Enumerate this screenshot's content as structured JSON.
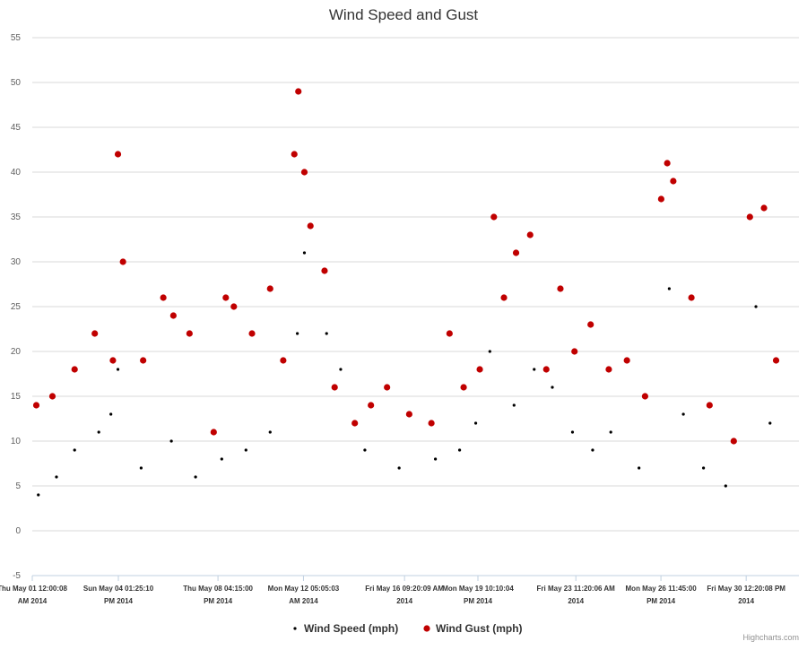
{
  "chart_data": {
    "type": "scatter",
    "title": "Wind Speed and Gust",
    "xlabel": "",
    "ylabel": "",
    "ylim": [
      -5,
      55
    ],
    "y_ticks": [
      -5,
      0,
      5,
      10,
      15,
      20,
      25,
      30,
      35,
      40,
      45,
      50,
      55
    ],
    "xlim": [
      "2014-05-01 00:00",
      "2014-06-01 16:40"
    ],
    "x_ticks": [
      {
        "at": "2014-05-01 00:00",
        "line1": "Thu May 01 12:00:08",
        "line2": "AM 2014"
      },
      {
        "at": "2014-05-04 13:25",
        "line1": "Sun May 04 01:25:10",
        "line2": "PM 2014"
      },
      {
        "at": "2014-05-08 16:15",
        "line1": "Thu May 08 04:15:00",
        "line2": "PM 2014"
      },
      {
        "at": "2014-05-12 05:05",
        "line1": "Mon May 12 05:05:03",
        "line2": "AM 2014"
      },
      {
        "at": "2014-05-16 09:20",
        "line1": "Fri May 16 09:20:09 AM",
        "line2": "2014"
      },
      {
        "at": "2014-05-19 10:10",
        "line1": "Mon May 19 10:10:04",
        "line2": "PM 2014"
      },
      {
        "at": "2014-05-23 11:20",
        "line1": "Fri May 23 11:20:06 AM",
        "line2": "2014"
      },
      {
        "at": "2014-05-26 23:45",
        "line1": "Mon May 26 11:45:00",
        "line2": "PM 2014"
      },
      {
        "at": "2014-05-30 12:20",
        "line1": "Fri May 30 12:20:08 PM",
        "line2": "2014"
      }
    ],
    "grid": true,
    "legend_position": "bottom-center",
    "series": [
      {
        "name": "Wind Speed (mph)",
        "color": "#000000",
        "marker": "small-dot",
        "x": [
          "2014-05-01 06:00",
          "2014-05-02 00:00",
          "2014-05-02 18:00",
          "2014-05-03 18:00",
          "2014-05-04 06:00",
          "2014-05-04 13:00",
          "2014-05-05 12:00",
          "2014-05-06 18:00",
          "2014-05-07 18:00",
          "2014-05-08 20:00",
          "2014-05-09 20:00",
          "2014-05-10 20:00",
          "2014-05-11 23:00",
          "2014-05-12 06:00",
          "2014-05-13 04:00",
          "2014-05-13 18:00",
          "2014-05-14 18:00",
          "2014-05-16 04:00",
          "2014-05-17 16:00",
          "2014-05-18 16:00",
          "2014-05-19 08:00",
          "2014-05-19 22:00",
          "2014-05-20 22:00",
          "2014-05-21 18:00",
          "2014-05-22 12:00",
          "2014-05-23 08:00",
          "2014-05-24 04:00",
          "2014-05-24 22:00",
          "2014-05-26 02:00",
          "2014-05-27 08:00",
          "2014-05-27 22:00",
          "2014-05-28 18:00",
          "2014-05-29 16:00",
          "2014-05-30 22:00",
          "2014-05-31 12:00"
        ],
        "y": [
          4,
          6,
          9,
          11,
          13,
          18,
          7,
          10,
          6,
          8,
          9,
          11,
          22,
          31,
          22,
          18,
          9,
          7,
          8,
          9,
          12,
          20,
          14,
          18,
          16,
          11,
          9,
          11,
          7,
          27,
          13,
          7,
          5,
          25,
          12
        ]
      },
      {
        "name": "Wind Gust (mph)",
        "color": "#c00000",
        "marker": "circle",
        "x": [
          "2014-05-01 04:00",
          "2014-05-01 20:00",
          "2014-05-02 18:00",
          "2014-05-03 14:00",
          "2014-05-04 08:00",
          "2014-05-04 13:00",
          "2014-05-04 18:00",
          "2014-05-05 14:00",
          "2014-05-06 10:00",
          "2014-05-06 20:00",
          "2014-05-07 12:00",
          "2014-05-08 12:00",
          "2014-05-09 00:00",
          "2014-05-09 08:00",
          "2014-05-10 02:00",
          "2014-05-10 20:00",
          "2014-05-11 09:00",
          "2014-05-11 20:00",
          "2014-05-12 00:00",
          "2014-05-12 06:00",
          "2014-05-12 12:00",
          "2014-05-13 02:00",
          "2014-05-13 12:00",
          "2014-05-14 08:00",
          "2014-05-15 00:00",
          "2014-05-15 16:00",
          "2014-05-16 14:00",
          "2014-05-17 12:00",
          "2014-05-18 06:00",
          "2014-05-18 20:00",
          "2014-05-19 12:00",
          "2014-05-20 02:00",
          "2014-05-20 12:00",
          "2014-05-21 00:00",
          "2014-05-21 14:00",
          "2014-05-22 06:00",
          "2014-05-22 20:00",
          "2014-05-23 10:00",
          "2014-05-24 02:00",
          "2014-05-24 20:00",
          "2014-05-25 14:00",
          "2014-05-26 08:00",
          "2014-05-27 00:00",
          "2014-05-27 06:00",
          "2014-05-27 12:00",
          "2014-05-28 06:00",
          "2014-05-29 00:00",
          "2014-05-30 00:00",
          "2014-05-30 16:00",
          "2014-05-31 06:00",
          "2014-05-31 18:00"
        ],
        "y": [
          14,
          15,
          18,
          22,
          19,
          42,
          30,
          19,
          26,
          24,
          22,
          11,
          26,
          25,
          22,
          27,
          19,
          42,
          49,
          40,
          34,
          29,
          16,
          12,
          14,
          16,
          13,
          12,
          22,
          16,
          18,
          35,
          26,
          31,
          33,
          18,
          27,
          20,
          23,
          18,
          19,
          15,
          37,
          41,
          39,
          26,
          14,
          10,
          35,
          36,
          19
        ]
      }
    ]
  },
  "legend": {
    "speed_label": "Wind Speed (mph)",
    "gust_label": "Wind Gust (mph)"
  },
  "credits": "Highcharts.com"
}
